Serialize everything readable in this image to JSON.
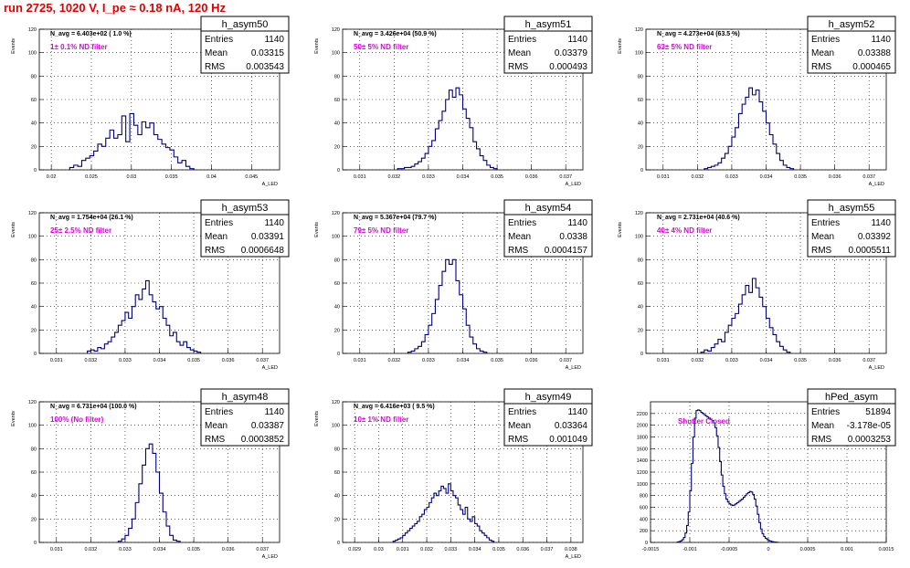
{
  "page": {
    "title": "run 2725,  1020 V, I_pe ≈ 0.18 nA, 120 Hz"
  },
  "colors": {
    "histogram_line": "#00007f",
    "annotation_magenta": "#e000e0",
    "title_red": "#e00000",
    "grid": "#000000"
  },
  "chart_data": [
    {
      "type": "histogram",
      "name": "h_asym50",
      "stats": {
        "entries": "1140",
        "mean": "0.03315",
        "rms": "0.003543"
      },
      "navg_text": "N_avg = 6.403e+02 ( 1.0 %)",
      "filter_text": "1± 0.1% ND filter",
      "ylabel": "Events",
      "xlabel": "A_LED",
      "xlim": [
        0.0185,
        0.0485
      ],
      "ylim": [
        0,
        120
      ],
      "xticks": [
        0.02,
        0.025,
        0.03,
        0.035,
        0.04,
        0.045
      ],
      "xticklabels": [
        "0.02",
        "0.025",
        "0.03",
        "0.035",
        "0.04",
        "0.045"
      ],
      "yticks": [
        0,
        20,
        40,
        60,
        80,
        100,
        120
      ],
      "yticklabels": [
        "0",
        "20",
        "40",
        "60",
        "80",
        "100",
        "120"
      ],
      "bin_start": 0.0223,
      "bin_width": 0.0005,
      "counts": [
        2,
        4,
        3,
        8,
        10,
        12,
        16,
        22,
        20,
        27,
        34,
        27,
        30,
        46,
        24,
        48,
        38,
        30,
        41,
        36,
        40,
        30,
        26,
        22,
        19,
        17,
        11,
        6,
        8,
        3,
        1
      ]
    },
    {
      "type": "histogram",
      "name": "h_asym51",
      "stats": {
        "entries": "1140",
        "mean": "0.03379",
        "rms": "0.000493"
      },
      "navg_text": "N_avg = 3.426e+04 (50.9 %)",
      "filter_text": "50± 5% ND filter",
      "ylabel": "Events",
      "xlabel": "A_LED",
      "xlim": [
        0.0305,
        0.0375
      ],
      "ylim": [
        0,
        120
      ],
      "xticks": [
        0.031,
        0.032,
        0.033,
        0.034,
        0.035,
        0.036,
        0.037
      ],
      "xticklabels": [
        "0.031",
        "0.032",
        "0.033",
        "0.034",
        "0.035",
        "0.036",
        "0.037"
      ],
      "yticks": [
        0,
        20,
        40,
        60,
        80,
        100,
        120
      ],
      "yticklabels": [
        "0",
        "20",
        "40",
        "60",
        "80",
        "100",
        "120"
      ],
      "bin_start": 0.0321,
      "bin_width": 0.0001,
      "counts": [
        1,
        1,
        2,
        2,
        3,
        5,
        7,
        10,
        14,
        20,
        25,
        35,
        42,
        50,
        60,
        68,
        62,
        70,
        64,
        52,
        44,
        36,
        24,
        18,
        12,
        8,
        4,
        2,
        1
      ]
    },
    {
      "type": "histogram",
      "name": "h_asym52",
      "stats": {
        "entries": "1140",
        "mean": "0.03388",
        "rms": "0.000465"
      },
      "navg_text": "N_avg = 4.273e+04 (63.5 %)",
      "filter_text": "63± 5% ND filter",
      "ylabel": "Events",
      "xlabel": "A_LED",
      "xlim": [
        0.0305,
        0.0375
      ],
      "ylim": [
        0,
        120
      ],
      "xticks": [
        0.031,
        0.032,
        0.033,
        0.034,
        0.035,
        0.036,
        0.037
      ],
      "xticklabels": [
        "0.031",
        "0.032",
        "0.033",
        "0.034",
        "0.035",
        "0.036",
        "0.037"
      ],
      "yticks": [
        0,
        20,
        40,
        60,
        80,
        100,
        120
      ],
      "yticklabels": [
        "0",
        "20",
        "40",
        "60",
        "80",
        "100",
        "120"
      ],
      "bin_start": 0.0322,
      "bin_width": 0.0001,
      "counts": [
        1,
        2,
        3,
        4,
        6,
        10,
        14,
        20,
        28,
        36,
        48,
        56,
        62,
        70,
        64,
        68,
        58,
        50,
        40,
        30,
        22,
        14,
        8,
        4,
        2,
        1
      ]
    },
    {
      "type": "histogram",
      "name": "h_asym53",
      "stats": {
        "entries": "1140",
        "mean": "0.03391",
        "rms": "0.0006648"
      },
      "navg_text": "N_avg = 1.754e+04 (26.1 %)",
      "filter_text": "25± 2.5% ND filter",
      "ylabel": "Events",
      "xlabel": "A_LED",
      "xlim": [
        0.0305,
        0.0375
      ],
      "ylim": [
        0,
        120
      ],
      "xticks": [
        0.031,
        0.032,
        0.033,
        0.034,
        0.035,
        0.036,
        0.037
      ],
      "xticklabels": [
        "0.031",
        "0.032",
        "0.033",
        "0.034",
        "0.035",
        "0.036",
        "0.037"
      ],
      "yticks": [
        0,
        20,
        40,
        60,
        80,
        100,
        120
      ],
      "yticklabels": [
        "0",
        "20",
        "40",
        "60",
        "80",
        "100",
        "120"
      ],
      "bin_start": 0.0319,
      "bin_width": 0.0001,
      "counts": [
        2,
        3,
        2,
        5,
        4,
        8,
        10,
        14,
        18,
        24,
        28,
        35,
        30,
        40,
        50,
        46,
        55,
        62,
        50,
        44,
        38,
        40,
        30,
        24,
        15,
        18,
        10,
        7,
        10,
        5,
        3,
        2,
        1
      ]
    },
    {
      "type": "histogram",
      "name": "h_asym54",
      "stats": {
        "entries": "1140",
        "mean": "0.0338",
        "rms": "0.0004157"
      },
      "navg_text": "N_avg = 5.367e+04 (79.7 %)",
      "filter_text": "79± 5% ND filter",
      "ylabel": "Events",
      "xlabel": "A_LED",
      "xlim": [
        0.0305,
        0.0375
      ],
      "ylim": [
        0,
        120
      ],
      "xticks": [
        0.031,
        0.032,
        0.033,
        0.034,
        0.035,
        0.036,
        0.037
      ],
      "xticklabels": [
        "0.031",
        "0.032",
        "0.033",
        "0.034",
        "0.035",
        "0.036",
        "0.037"
      ],
      "yticks": [
        0,
        20,
        40,
        60,
        80,
        100,
        120
      ],
      "yticklabels": [
        "0",
        "20",
        "40",
        "60",
        "80",
        "100",
        "120"
      ],
      "bin_start": 0.0324,
      "bin_width": 0.0001,
      "counts": [
        1,
        2,
        4,
        6,
        10,
        16,
        24,
        34,
        46,
        58,
        70,
        80,
        76,
        80,
        62,
        50,
        38,
        24,
        14,
        8,
        4,
        2,
        1
      ]
    },
    {
      "type": "histogram",
      "name": "h_asym55",
      "stats": {
        "entries": "1140",
        "mean": "0.03392",
        "rms": "0.0005511"
      },
      "navg_text": "N_avg = 2.731e+04 (40.6 %)",
      "filter_text": "40± 4% ND filter",
      "ylabel": "Events",
      "xlabel": "A_LED",
      "xlim": [
        0.0305,
        0.0375
      ],
      "ylim": [
        0,
        120
      ],
      "xticks": [
        0.031,
        0.032,
        0.033,
        0.034,
        0.035,
        0.036,
        0.037
      ],
      "xticklabels": [
        "0.031",
        "0.032",
        "0.033",
        "0.034",
        "0.035",
        "0.036",
        "0.037"
      ],
      "yticks": [
        0,
        20,
        40,
        60,
        80,
        100,
        120
      ],
      "yticklabels": [
        "0",
        "20",
        "40",
        "60",
        "80",
        "100",
        "120"
      ],
      "bin_start": 0.0321,
      "bin_width": 0.0001,
      "counts": [
        1,
        3,
        2,
        5,
        8,
        12,
        10,
        18,
        24,
        30,
        34,
        42,
        50,
        58,
        52,
        64,
        56,
        48,
        40,
        30,
        22,
        16,
        10,
        6,
        3,
        1
      ]
    },
    {
      "type": "histogram",
      "name": "h_asym48",
      "stats": {
        "entries": "1140",
        "mean": "0.03387",
        "rms": "0.0003852"
      },
      "navg_text": "N_avg = 6.731e+04 (100.0 %)",
      "filter_text": "100% (No filter)",
      "ylabel": "Events",
      "xlabel": "A_LED",
      "xlim": [
        0.0305,
        0.0375
      ],
      "ylim": [
        0,
        120
      ],
      "xticks": [
        0.031,
        0.032,
        0.033,
        0.034,
        0.035,
        0.036,
        0.037
      ],
      "xticklabels": [
        "0.031",
        "0.032",
        "0.033",
        "0.034",
        "0.035",
        "0.036",
        "0.037"
      ],
      "yticks": [
        0,
        20,
        40,
        60,
        80,
        100,
        120
      ],
      "yticklabels": [
        "0",
        "20",
        "40",
        "60",
        "80",
        "100",
        "120"
      ],
      "bin_start": 0.0328,
      "bin_width": 0.0001,
      "counts": [
        1,
        3,
        6,
        12,
        20,
        34,
        50,
        66,
        80,
        84,
        76,
        60,
        42,
        26,
        14,
        6,
        2,
        1
      ]
    },
    {
      "type": "histogram",
      "name": "h_asym49",
      "stats": {
        "entries": "1140",
        "mean": "0.03364",
        "rms": "0.001049"
      },
      "navg_text": "N_avg = 6.416e+03 ( 9.5 %)",
      "filter_text": "10± 1% ND filter",
      "ylabel": "Events",
      "xlabel": "A_LED",
      "xlim": [
        0.0285,
        0.0385
      ],
      "ylim": [
        0,
        120
      ],
      "xticks": [
        0.029,
        0.03,
        0.031,
        0.032,
        0.033,
        0.034,
        0.035,
        0.036,
        0.037,
        0.038
      ],
      "xticklabels": [
        "0.029",
        "0.03",
        "0.031",
        "0.032",
        "0.033",
        "0.034",
        "0.035",
        "0.036",
        "0.037",
        "0.038"
      ],
      "yticks": [
        0,
        20,
        40,
        60,
        80,
        100,
        120
      ],
      "yticklabels": [
        "0",
        "20",
        "40",
        "60",
        "80",
        "100",
        "120"
      ],
      "bin_start": 0.0306,
      "bin_width": 0.0001,
      "counts": [
        1,
        2,
        3,
        4,
        6,
        8,
        10,
        12,
        14,
        16,
        18,
        22,
        24,
        28,
        30,
        34,
        38,
        42,
        40,
        44,
        48,
        46,
        42,
        50,
        44,
        40,
        38,
        32,
        28,
        24,
        30,
        20,
        18,
        22,
        16,
        14,
        10,
        8,
        6,
        4,
        2,
        1
      ]
    },
    {
      "type": "histogram",
      "name": "hPed_asym",
      "stats": {
        "entries": "51894",
        "mean": "-3.178e-05",
        "rms": "0.0003253"
      },
      "filter_text": "Shutter Closed",
      "xlim": [
        -0.0015,
        0.0015
      ],
      "ylim": [
        0,
        2400
      ],
      "xticks": [
        -0.0015,
        -0.001,
        -0.0005,
        0,
        0.0005,
        0.001,
        0.0015
      ],
      "xticklabels": [
        "-0.0015",
        "-0.001",
        "-0.0005",
        "0",
        "0.0005",
        "0.001",
        "0.0015"
      ],
      "yticks": [
        0,
        200,
        400,
        600,
        800,
        1000,
        1200,
        1400,
        1600,
        1800,
        2000,
        2200
      ],
      "yticklabels": [
        "0",
        "200",
        "400",
        "600",
        "800",
        "1000",
        "1200",
        "1400",
        "1600",
        "1800",
        "2000",
        "2200"
      ],
      "bin_start": -0.00116,
      "bin_width": 2e-05,
      "counts": [
        8,
        14,
        26,
        46,
        85,
        160,
        290,
        520,
        880,
        1350,
        1800,
        2120,
        2250,
        2260,
        2250,
        2220,
        2200,
        2180,
        2160,
        2140,
        2120,
        2100,
        2080,
        2040,
        1960,
        1820,
        1620,
        1380,
        1150,
        960,
        830,
        740,
        690,
        660,
        640,
        630,
        640,
        660,
        680,
        700,
        720,
        740,
        770,
        800,
        830,
        850,
        870,
        860,
        820,
        740,
        620,
        480,
        340,
        230,
        150,
        100,
        70,
        48,
        32,
        22,
        14,
        9,
        5,
        3
      ]
    }
  ]
}
